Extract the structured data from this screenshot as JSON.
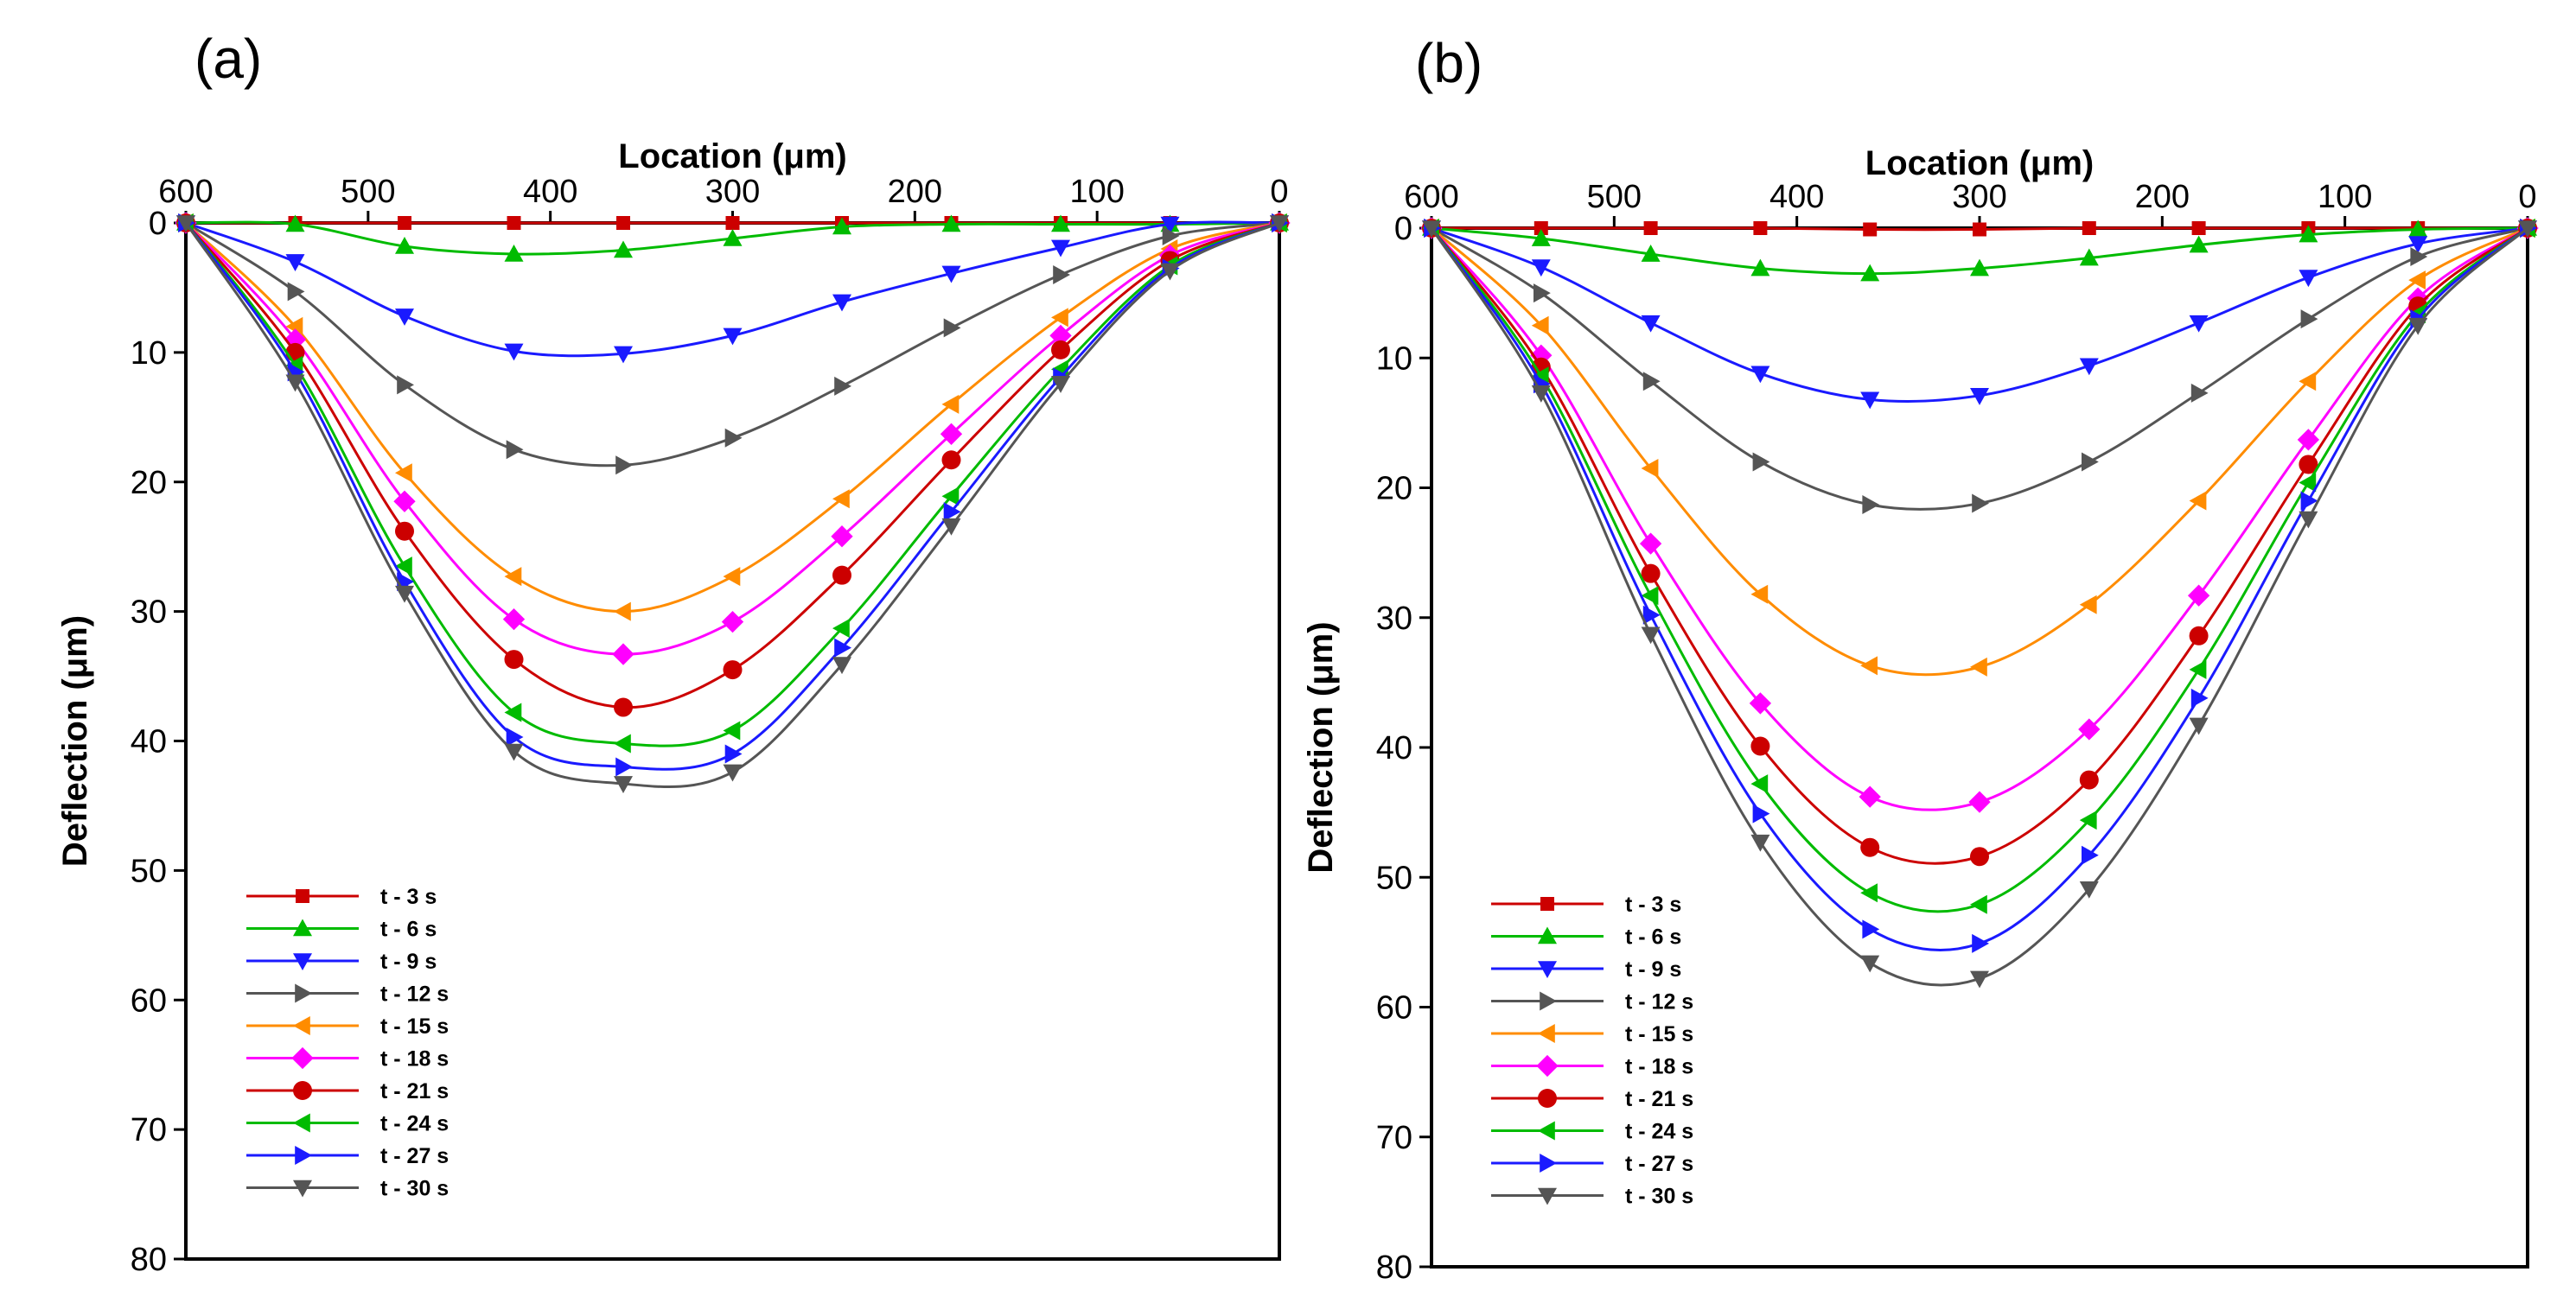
{
  "chart_data": [
    {
      "type": "line",
      "panel_label": "(a)",
      "title": "",
      "xlabel": "Location (μm)",
      "ylabel": "Deflection (μm)",
      "xlim": [
        600,
        0
      ],
      "ylim": [
        0,
        80
      ],
      "xticks": [
        "600",
        "500",
        "400",
        "300",
        "200",
        "100",
        "0"
      ],
      "yticks": [
        "0",
        "10",
        "20",
        "30",
        "40",
        "50",
        "60",
        "70",
        "80"
      ],
      "x": [
        600,
        540,
        480,
        420,
        360,
        300,
        240,
        180,
        120,
        60,
        0
      ],
      "grid": false,
      "legend_position": "bottom-left",
      "series": [
        {
          "name": "t - 3 s",
          "color": "#cc0000",
          "marker": "square",
          "values": [
            0,
            0,
            0,
            0,
            0,
            0,
            0,
            0,
            0,
            0,
            0
          ]
        },
        {
          "name": "t - 6 s",
          "color": "#00bb00",
          "marker": "triangle-up",
          "values": [
            0,
            0.1,
            1.8,
            2.4,
            2.1,
            1.2,
            0.3,
            0.1,
            0.1,
            0.1,
            0
          ]
        },
        {
          "name": "t - 9 s",
          "color": "#1a1aff",
          "marker": "triangle-down",
          "values": [
            0,
            3,
            7.2,
            9.9,
            10.1,
            8.7,
            6.1,
            3.9,
            1.9,
            0.1,
            0
          ]
        },
        {
          "name": "t - 12 s",
          "color": "#555555",
          "marker": "triangle-right",
          "values": [
            0,
            5.3,
            12.5,
            17.5,
            18.7,
            16.6,
            12.6,
            8.1,
            4,
            1,
            0
          ]
        },
        {
          "name": "t - 15 s",
          "color": "#ff8c00",
          "marker": "triangle-left",
          "values": [
            0,
            8,
            19.3,
            27.3,
            30,
            27.3,
            21.3,
            14,
            7.3,
            2,
            0
          ]
        },
        {
          "name": "t - 18 s",
          "color": "#ff00ff",
          "marker": "diamond",
          "values": [
            0,
            9,
            21.5,
            30.6,
            33.3,
            30.8,
            24.2,
            16.3,
            8.7,
            2.5,
            0
          ]
        },
        {
          "name": "t - 21 s",
          "color": "#cc0000",
          "marker": "circle",
          "values": [
            0,
            10,
            23.8,
            33.7,
            37.4,
            34.5,
            27.2,
            18.3,
            9.8,
            2.9,
            0
          ]
        },
        {
          "name": "t - 24 s",
          "color": "#00bb00",
          "marker": "triangle-left",
          "values": [
            0,
            11,
            26.5,
            37.8,
            40.2,
            39.2,
            31.3,
            21.1,
            11.3,
            3.3,
            0
          ]
        },
        {
          "name": "t - 27 s",
          "color": "#1a1aff",
          "marker": "triangle-right",
          "values": [
            0,
            11.5,
            27.7,
            39.7,
            42,
            41,
            32.8,
            22.3,
            11.9,
            3.5,
            0
          ]
        },
        {
          "name": "t - 30 s",
          "color": "#555555",
          "marker": "triangle-down",
          "values": [
            0,
            12.3,
            28.6,
            40.8,
            43.3,
            42.4,
            34.1,
            23.4,
            12.4,
            3.7,
            0
          ]
        }
      ]
    },
    {
      "type": "line",
      "panel_label": "(b)",
      "title": "",
      "xlabel": "Location (μm)",
      "ylabel": "Deflection (μm)",
      "xlim": [
        600,
        0
      ],
      "ylim": [
        0,
        80
      ],
      "xticks": [
        "600",
        "500",
        "400",
        "300",
        "200",
        "100",
        "0"
      ],
      "yticks": [
        "0",
        "10",
        "20",
        "30",
        "40",
        "50",
        "60",
        "70",
        "80"
      ],
      "x": [
        600,
        540,
        480,
        420,
        360,
        300,
        240,
        180,
        120,
        60,
        0
      ],
      "grid": false,
      "legend_position": "bottom-left",
      "series": [
        {
          "name": "t - 3 s",
          "color": "#cc0000",
          "marker": "square",
          "values": [
            0,
            0,
            0,
            0,
            0.1,
            0.1,
            0,
            0,
            0,
            0,
            0
          ]
        },
        {
          "name": "t - 6 s",
          "color": "#00bb00",
          "marker": "triangle-up",
          "values": [
            0,
            0.8,
            2,
            3.1,
            3.5,
            3.1,
            2.3,
            1.3,
            0.5,
            0.1,
            0
          ]
        },
        {
          "name": "t - 9 s",
          "color": "#1a1aff",
          "marker": "triangle-down",
          "values": [
            0,
            3,
            7.3,
            11.2,
            13.2,
            12.9,
            10.6,
            7.3,
            3.8,
            1.2,
            0
          ]
        },
        {
          "name": "t - 12 s",
          "color": "#555555",
          "marker": "triangle-right",
          "values": [
            0,
            5,
            11.8,
            18,
            21.3,
            21.2,
            18,
            12.7,
            7,
            2.2,
            0
          ]
        },
        {
          "name": "t - 15 s",
          "color": "#ff8c00",
          "marker": "triangle-left",
          "values": [
            0,
            7.5,
            18.5,
            28.2,
            33.7,
            33.8,
            29,
            21,
            11.8,
            4,
            0
          ]
        },
        {
          "name": "t - 18 s",
          "color": "#ff00ff",
          "marker": "diamond",
          "values": [
            0,
            9.8,
            24.3,
            36.6,
            43.8,
            44.2,
            38.6,
            28.3,
            16.3,
            5.4,
            0
          ]
        },
        {
          "name": "t - 21 s",
          "color": "#cc0000",
          "marker": "circle",
          "values": [
            0,
            10.7,
            26.6,
            39.9,
            47.7,
            48.4,
            42.5,
            31.4,
            18.2,
            6,
            0
          ]
        },
        {
          "name": "t - 24 s",
          "color": "#00bb00",
          "marker": "triangle-left",
          "values": [
            0,
            11.4,
            28.3,
            42.8,
            51.2,
            52.1,
            45.6,
            34,
            19.6,
            6.6,
            0
          ]
        },
        {
          "name": "t - 27 s",
          "color": "#1a1aff",
          "marker": "triangle-right",
          "values": [
            0,
            12,
            29.8,
            45.1,
            54,
            55.1,
            48.3,
            36.2,
            21,
            7,
            0
          ]
        },
        {
          "name": "t - 30 s",
          "color": "#555555",
          "marker": "triangle-down",
          "values": [
            0,
            12.7,
            31.3,
            47.3,
            56.6,
            57.8,
            50.9,
            38.3,
            22.4,
            7.5,
            0
          ]
        }
      ]
    }
  ]
}
